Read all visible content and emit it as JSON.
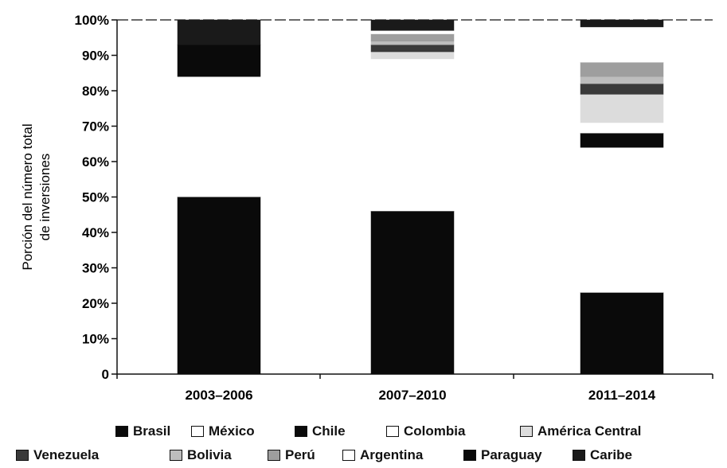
{
  "chart_data": {
    "type": "bar",
    "stacked": true,
    "ylabel": "Porción del número total de inversiones",
    "y_ticks": [
      "0",
      "10%",
      "20%",
      "30%",
      "40%",
      "50%",
      "60%",
      "70%",
      "80%",
      "90%",
      "100%"
    ],
    "ylim": [
      0,
      100
    ],
    "categories": [
      "2003–2006",
      "2007–2010",
      "2011–2014"
    ],
    "series": [
      {
        "name": "Brasil",
        "values": [
          50,
          46,
          23
        ],
        "color": "#0a0a0a"
      },
      {
        "name": "México",
        "values": [
          34,
          43,
          41
        ],
        "color": "#ffffff"
      },
      {
        "name": "Chile",
        "values": [
          9,
          0,
          4
        ],
        "color": "#0a0a0a"
      },
      {
        "name": "Colombia",
        "values": [
          0,
          0,
          3
        ],
        "color": "#ffffff"
      },
      {
        "name": "América Central",
        "values": [
          0,
          2,
          8
        ],
        "color": "#dcdcdc"
      },
      {
        "name": "Venezuela",
        "values": [
          0,
          2,
          3
        ],
        "color": "#3a3a3a"
      },
      {
        "name": "Bolivia",
        "values": [
          0,
          1,
          2
        ],
        "color": "#bdbdbd"
      },
      {
        "name": "Perú",
        "values": [
          0,
          2,
          4
        ],
        "color": "#9e9e9e"
      },
      {
        "name": "Argentina",
        "values": [
          0,
          1,
          10
        ],
        "color": "#ffffff"
      },
      {
        "name": "Paraguay",
        "values": [
          0,
          0,
          0
        ],
        "color": "#0a0a0a"
      },
      {
        "name": "Caribe",
        "values": [
          7,
          3,
          2
        ],
        "color": "#1a1a1a"
      }
    ],
    "legend_placement": "bottom",
    "grid": false
  },
  "legend": {
    "row1": [
      "Brasil",
      "México",
      "Chile",
      "Colombia",
      "América Central"
    ],
    "row2": [
      "Venezuela",
      "Bolivia",
      "Perú",
      "Argentina",
      "Paraguay",
      "Caribe"
    ]
  }
}
